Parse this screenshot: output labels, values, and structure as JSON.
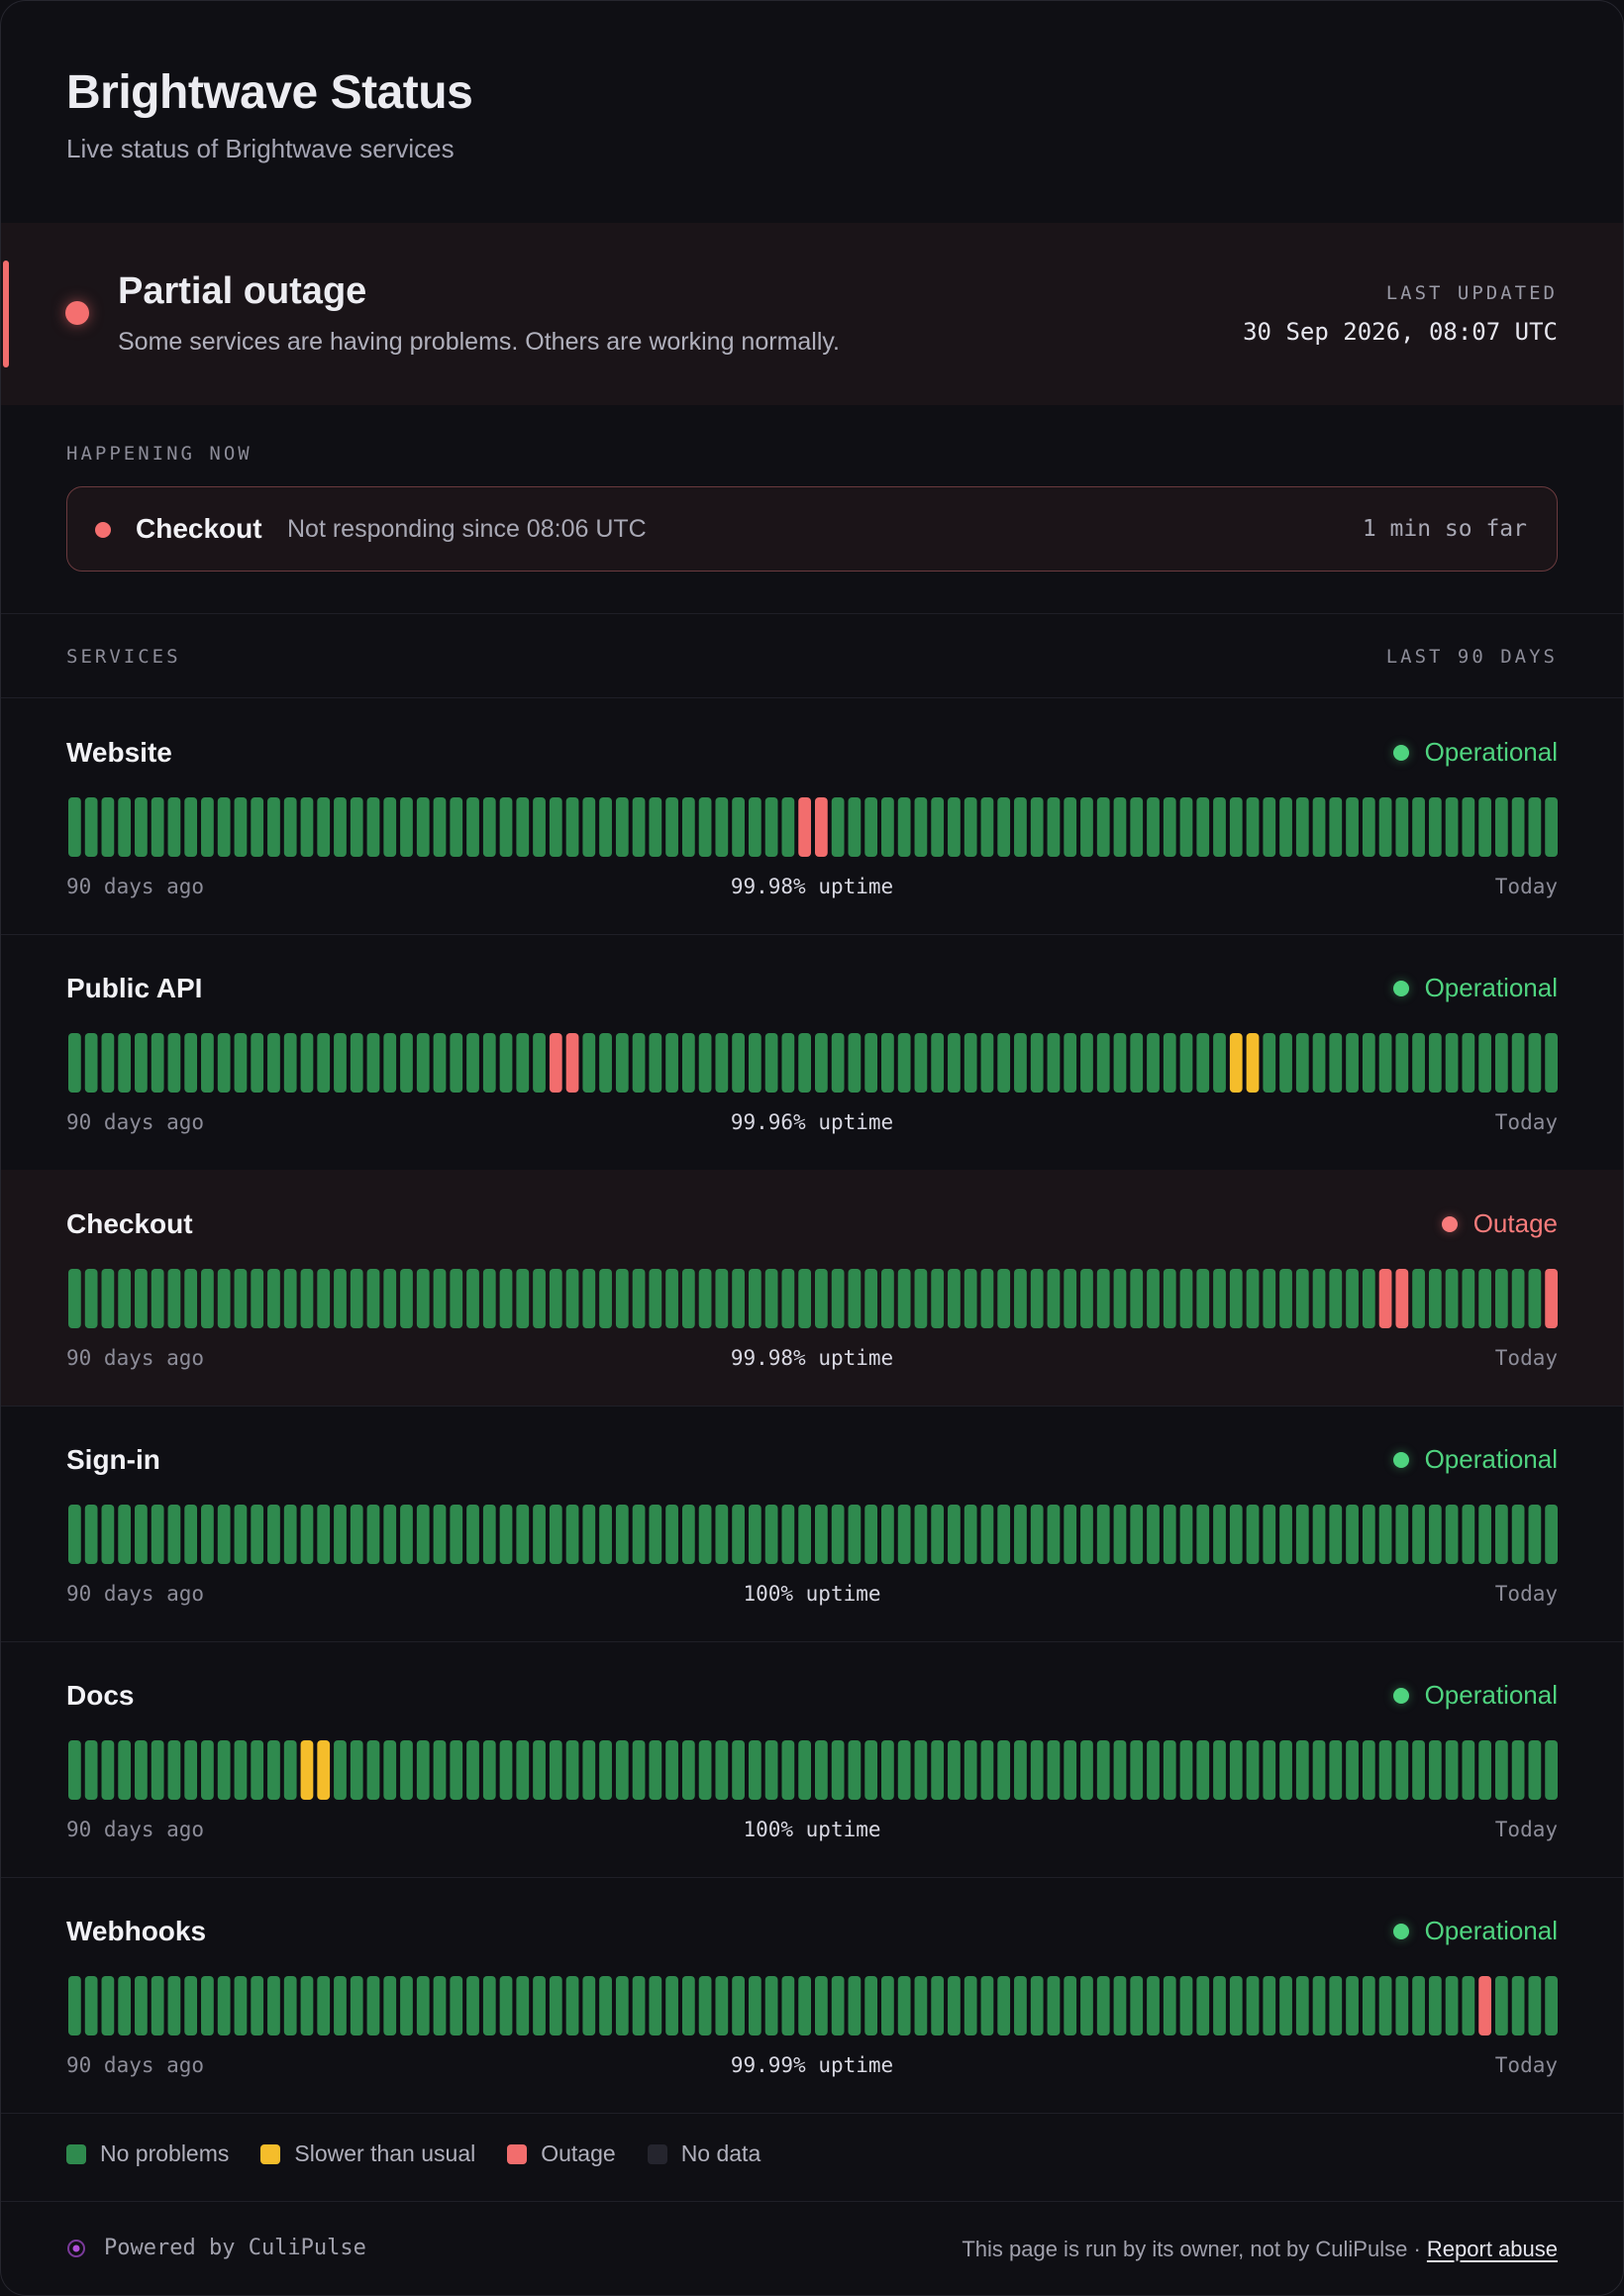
{
  "header": {
    "title": "Brightwave Status",
    "subtitle": "Live status of Brightwave services"
  },
  "banner": {
    "title": "Partial outage",
    "description": "Some services are having problems. Others are working normally.",
    "last_updated_label": "LAST UPDATED",
    "last_updated_value": "30 Sep 2026, 08:07 UTC",
    "color": "#f46f6f"
  },
  "happening_now": {
    "label": "HAPPENING NOW",
    "incident": {
      "service": "Checkout",
      "description": "Not responding since 08:06 UTC",
      "duration": "1 min so far"
    }
  },
  "services_header": {
    "label": "SERVICES",
    "range": "LAST 90 DAYS"
  },
  "colors": {
    "ok": "#2f8a4e",
    "slow": "#f5bd2b",
    "outage": "#f26d6d",
    "nodata": "#25252e",
    "operational_text": "#4fd37f",
    "outage_text": "#f77b7b"
  },
  "services": [
    {
      "name": "Website",
      "status": "Operational",
      "status_kind": "operational",
      "uptime": "99.98% uptime",
      "start_label": "90 days ago",
      "end_label": "Today",
      "days": "ggggggggggggggggggggggggggggggggggggggggggggrrgggggggggggggggggggggggggggggggggggggggggggg"
    },
    {
      "name": "Public API",
      "status": "Operational",
      "status_kind": "operational",
      "uptime": "99.96% uptime",
      "start_label": "90 days ago",
      "end_label": "Today",
      "days": "gggggggggggggggggggggggggggggrrgggggggggggggggggggggggggggggggggggggggyyggggggggggggggggggg"
    },
    {
      "name": "Checkout",
      "status": "Outage",
      "status_kind": "outage",
      "uptime": "99.98% uptime",
      "start_label": "90 days ago",
      "end_label": "Today",
      "days": "gggggggggggggggggggggggggggggggggggggggggggggggggggggggggggggggggggggggggggggggrrggggggggr"
    },
    {
      "name": "Sign-in",
      "status": "Operational",
      "status_kind": "operational",
      "uptime": "100% uptime",
      "start_label": "90 days ago",
      "end_label": "Today",
      "days": "gggggggggggggggggggggggggggggggggggggggggggggggggggggggggggggggggggggggggggggggggggggggggg"
    },
    {
      "name": "Docs",
      "status": "Operational",
      "status_kind": "operational",
      "uptime": "100% uptime",
      "start_label": "90 days ago",
      "end_label": "Today",
      "days": "ggggggggggggggyygggggggggggggggggggggggggggggggggggggggggggggggggggggggggggggggggggggggggg"
    },
    {
      "name": "Webhooks",
      "status": "Operational",
      "status_kind": "operational",
      "uptime": "99.99% uptime",
      "start_label": "90 days ago",
      "end_label": "Today",
      "days": "gggggggggggggggggggggggggggggggggggggggggggggggggggggggggggggggggggggggggggggggggggggrggggg"
    }
  ],
  "legend": [
    {
      "label": "No problems",
      "kind": "ok"
    },
    {
      "label": "Slower than usual",
      "kind": "slow"
    },
    {
      "label": "Outage",
      "kind": "outage"
    },
    {
      "label": "No data",
      "kind": "nodata"
    }
  ],
  "footer": {
    "powered": "Powered by CuliPulse",
    "note": "This page is run by its owner, not by CuliPulse ·",
    "report": "Report abuse",
    "logo_icon": "pulse-logo-icon"
  }
}
